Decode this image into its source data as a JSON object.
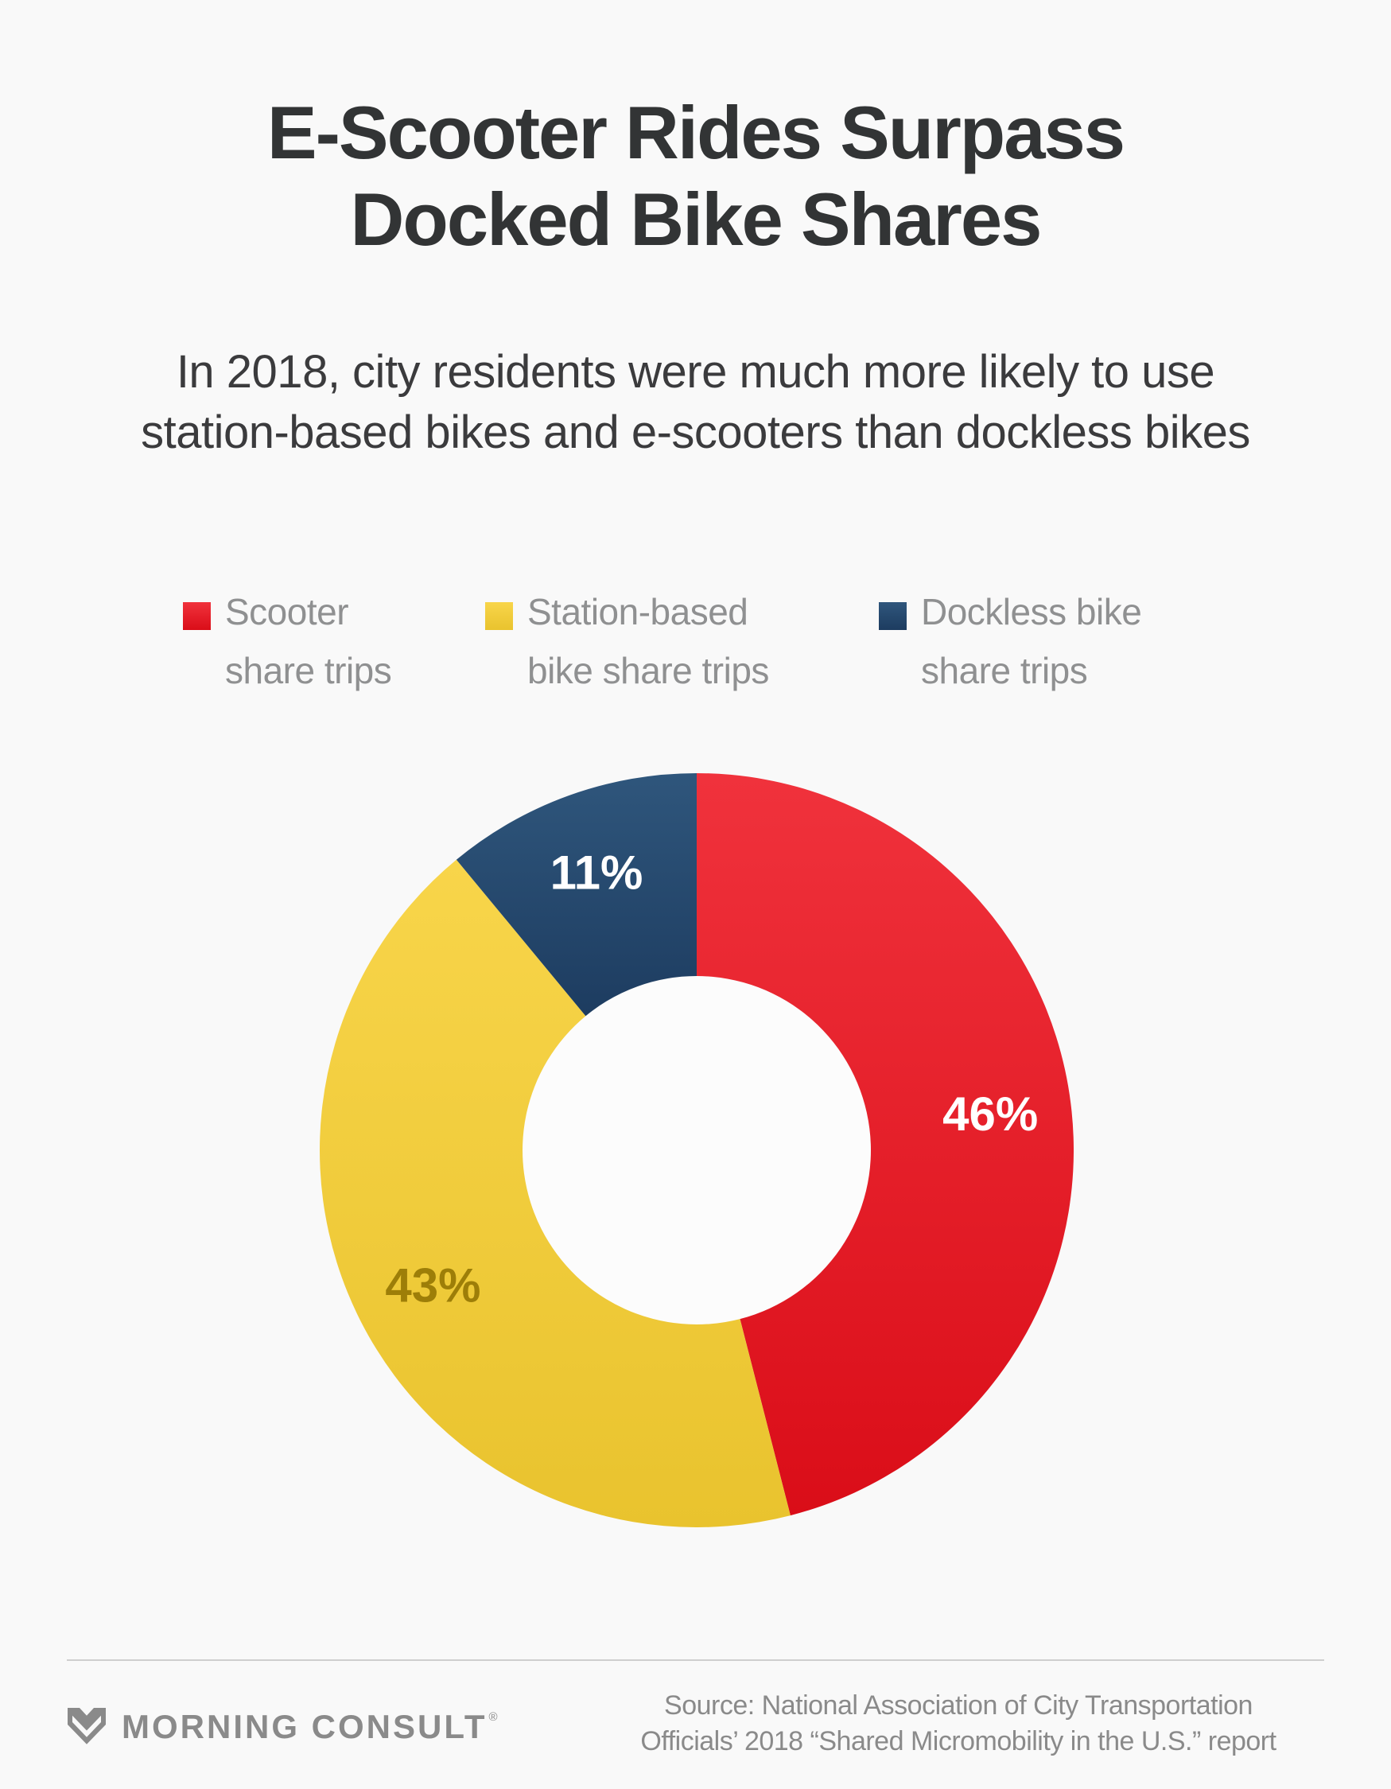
{
  "page": {
    "background": "#f9f9f9"
  },
  "header": {
    "title": [
      "E-Scooter Rides Surpass",
      "Docked Bike Shares"
    ],
    "subtitle": [
      "In 2018, city residents were much more likely to use",
      "station-based bikes and e-scooters than dockless bikes"
    ]
  },
  "legend": [
    {
      "label": [
        "Scooter",
        "share trips"
      ],
      "color_top": "#f0323c",
      "color_bottom": "#da0d18"
    },
    {
      "label": [
        "Station-based",
        "bike share trips"
      ],
      "color_top": "#f8d54a",
      "color_bottom": "#e9c32e"
    },
    {
      "label": [
        "Dockless bike",
        "share trips"
      ],
      "color_top": "#2f567c",
      "color_bottom": "#1d3c60"
    }
  ],
  "chart_data": {
    "type": "pie",
    "subtype": "donut",
    "title": "E-Scooter Rides Surpass Docked Bike Shares",
    "categories": [
      "Scooter share trips",
      "Station-based bike share trips",
      "Dockless bike share trips"
    ],
    "values": [
      46,
      43,
      11
    ],
    "unit": "%",
    "start_angle_deg": 0,
    "direction": "clockwise",
    "inner_radius_ratio": 0.462,
    "label_radius_ratio": 0.785,
    "legend_position": "top",
    "hole_color": "#fcfcfc",
    "segments": [
      {
        "name": "scooter-share-trips",
        "value": 46,
        "label": "46%",
        "color_top": "#f0323c",
        "color_bottom": "#da0d18",
        "label_color": "#ffffff"
      },
      {
        "name": "station-based-bike-share-trips",
        "value": 43,
        "label": "43%",
        "color_top": "#f8d54a",
        "color_bottom": "#e9c32e",
        "label_color": "#9d7e08"
      },
      {
        "name": "dockless-bike-share-trips",
        "value": 11,
        "label": "11%",
        "color_top": "#2f567c",
        "color_bottom": "#1d3c60",
        "label_color": "#ffffff"
      }
    ]
  },
  "footer": {
    "brand": "MORNING CONSULT",
    "registered_mark": "®",
    "source": [
      "Source: National Association of City Transportation",
      "Officials’ 2018 “Shared Micromobility in the U.S.” report"
    ]
  }
}
